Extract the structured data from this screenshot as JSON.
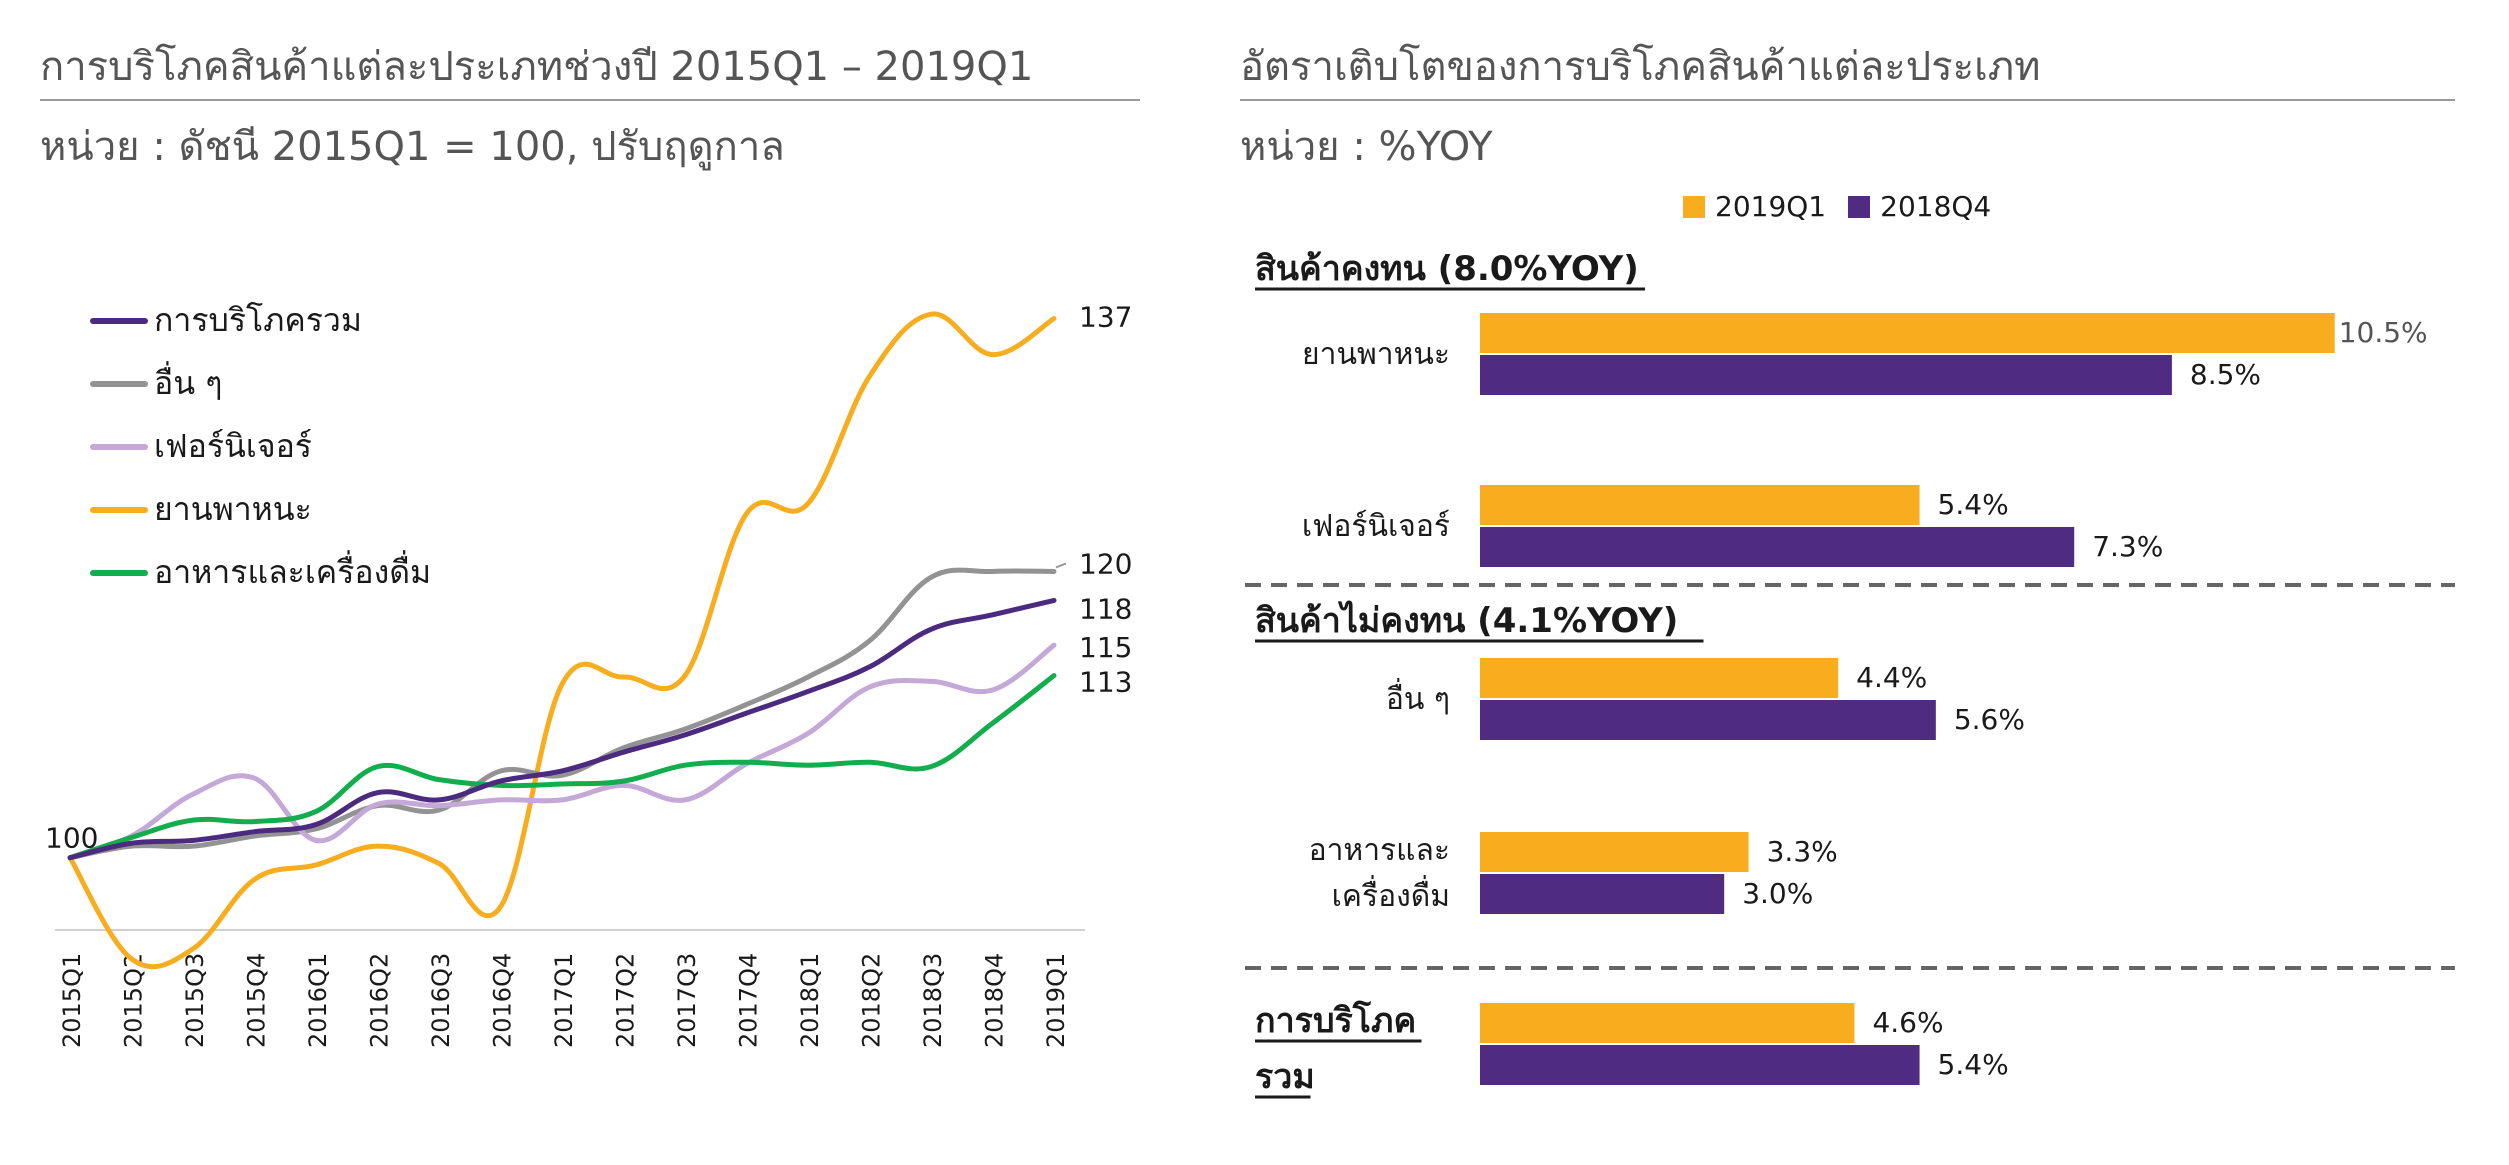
{
  "left": {
    "title": "การบริโภคสินค้าแต่ละประเภทช่วงปี 2015Q1 – 2019Q1",
    "unit": "หน่วย : ดัชนี 2015Q1 = 100, ปรับฤดูกาล",
    "start_label": "100"
  },
  "right": {
    "title": "อัตราเติบโตของการบริโภคสินค้าแต่ละประเภท",
    "unit": "หน่วย : %YOY"
  },
  "colors": {
    "total": "#4b2a7f",
    "others": "#939393",
    "furniture": "#c3a8d8",
    "vehicles": "#f8ad1f",
    "food": "#12ad4c",
    "bar_2019q1": "#f8ad1f",
    "bar_2018q4": "#4f2c82"
  },
  "chart_data": [
    {
      "type": "line",
      "title": "การบริโภคสินค้าแต่ละประเภทช่วงปี 2015Q1 – 2019Q1",
      "ylabel": "ดัชนี 2015Q1 = 100",
      "ylim": [
        95,
        141
      ],
      "x": [
        "2015Q1",
        "2015Q2",
        "2015Q3",
        "2015Q4",
        "2016Q1",
        "2016Q2",
        "2016Q3",
        "2016Q4",
        "2017Q1",
        "2017Q2",
        "2017Q3",
        "2017Q4",
        "2018Q1",
        "2018Q2",
        "2018Q3",
        "2018Q4",
        "2019Q1"
      ],
      "series": [
        {
          "key": "total",
          "name": "การบริโภครวม",
          "end_label": "118",
          "values": [
            100,
            101,
            101.2,
            101.8,
            102.3,
            104.5,
            104,
            105.3,
            106,
            107.3,
            108.5,
            110,
            111.5,
            113.2,
            115.8,
            116.8,
            117.8
          ]
        },
        {
          "key": "others",
          "name": "อื่น ๆ",
          "end_label": "120",
          "values": [
            100,
            100.8,
            100.8,
            101.5,
            102,
            103.6,
            103.3,
            106,
            105.7,
            107.6,
            108.9,
            110.6,
            112.5,
            115,
            119.4,
            119.8,
            119.8
          ]
        },
        {
          "key": "furniture",
          "name": "เฟอร์นิเจอร์",
          "end_label": "115",
          "values": [
            100,
            101.5,
            104.4,
            105.5,
            101.2,
            103.7,
            103.6,
            104,
            104,
            105,
            104,
            106.5,
            108.6,
            111.8,
            112.2,
            111.6,
            114.7
          ]
        },
        {
          "key": "vehicles",
          "name": "ยานพาหนะ",
          "end_label": "137",
          "values": [
            100,
            93,
            93.7,
            98.5,
            99.5,
            100.8,
            99.6,
            96.6,
            112,
            112.5,
            112.6,
            123.8,
            124.5,
            133.3,
            137.6,
            134.8,
            137.3
          ]
        },
        {
          "key": "food",
          "name": "อาหารและเครื่องดื่ม",
          "end_label": "113",
          "values": [
            100,
            101.4,
            102.6,
            102.5,
            103.2,
            106.3,
            105.4,
            105,
            105.1,
            105.3,
            106.4,
            106.6,
            106.4,
            106.6,
            106.3,
            109.3,
            112.6
          ]
        }
      ]
    },
    {
      "type": "bar",
      "orientation": "horizontal",
      "title": "อัตราเติบโตของการบริโภคสินค้าแต่ละประเภท",
      "unit": "%YOY",
      "legend": [
        "2019Q1",
        "2018Q4"
      ],
      "groups": [
        {
          "header": "สินค้าคงทน (8.0%YOY)",
          "categories": [
            {
              "name_lines": [
                "ยานพาหนะ"
              ],
              "values": [
                10.5,
                8.5
              ],
              "labels": [
                "10.5%",
                "8.5%"
              ]
            },
            {
              "name_lines": [
                "เฟอร์นิเจอร์"
              ],
              "values": [
                5.4,
                7.3
              ],
              "labels": [
                "5.4%",
                "7.3%"
              ]
            }
          ]
        },
        {
          "header": "สินค้าไม่คงทน (4.1%YOY)",
          "categories": [
            {
              "name_lines": [
                "อื่น ๆ"
              ],
              "values": [
                4.4,
                5.6
              ],
              "labels": [
                "4.4%",
                "5.6%"
              ]
            },
            {
              "name_lines": [
                "อาหารและ",
                "เครื่องดื่ม"
              ],
              "values": [
                3.3,
                3.0
              ],
              "labels": [
                "3.3%",
                "3.0%"
              ]
            }
          ]
        },
        {
          "header_lines": [
            "การบริโภค",
            "รวม"
          ],
          "categories": [
            {
              "name_lines": [],
              "values": [
                4.6,
                5.4
              ],
              "labels": [
                "4.6%",
                "5.4%"
              ]
            }
          ]
        }
      ]
    }
  ]
}
